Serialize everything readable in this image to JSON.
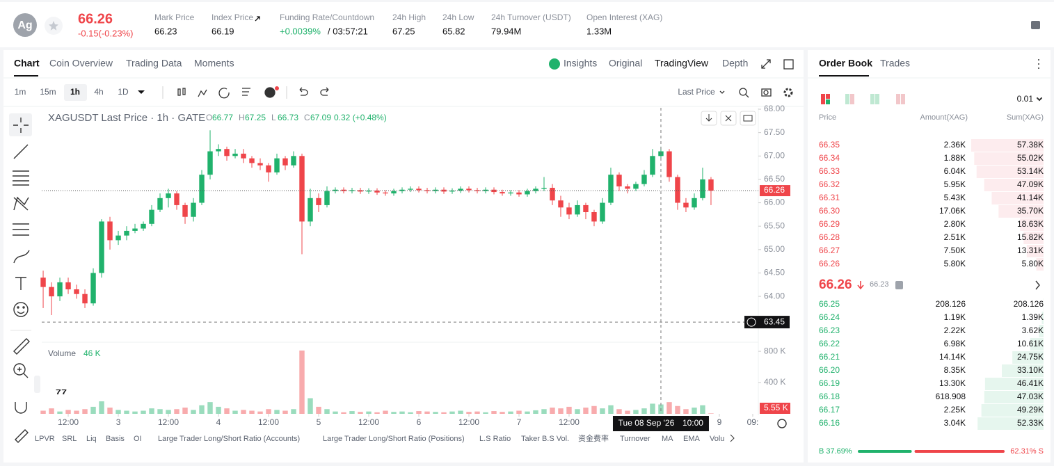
{
  "header": {
    "avatar": "Ag",
    "price": "66.26",
    "change": "-0.15(-0.23%)",
    "stats": [
      {
        "label": "Mark Price",
        "value": "66.23"
      },
      {
        "label": "Index Price",
        "value": "66.19"
      },
      {
        "label": "Funding Rate/Countdown",
        "value": "+0.0039%",
        "countdown": "/ 03:57:21"
      },
      {
        "label": "24h High",
        "value": "67.25"
      },
      {
        "label": "24h Low",
        "value": "65.82"
      },
      {
        "label": "24h Turnover (USDT)",
        "value": "79.94M"
      },
      {
        "label": "Open Interest (XAG)",
        "value": "1.33M"
      }
    ]
  },
  "tabs": [
    "Chart",
    "Coin Overview",
    "Trading Data",
    "Moments"
  ],
  "views": [
    "Insights",
    "Original",
    "TradingView",
    "Depth"
  ],
  "intervals": [
    "1m",
    "15m",
    "1h",
    "4h",
    "1D"
  ],
  "price_type": "Last Price",
  "indicators": [
    "LPVR",
    "SRL",
    "Liq",
    "Basis",
    "OI",
    "Large Trader Long/Short Ratio (Accounts)",
    "Large Trader Long/Short Ratio (Positions)",
    "L.S Ratio",
    "Taker B.S Vol.",
    "资金费率",
    "Turnover",
    "MA",
    "EMA",
    "Volu"
  ],
  "chart_data": {
    "type": "candlestick",
    "title": "XAGUSDT Last Price · 1h · GATE",
    "legend": [
      {
        "key": "O",
        "value": "66.77"
      },
      {
        "key": "H",
        "value": "67.25"
      },
      {
        "key": "L",
        "value": "66.73"
      },
      {
        "key": "C",
        "value": "67.09"
      }
    ],
    "legend_change": "0.32 (+0.48%)",
    "xlim": [
      -0.17,
      85.67
    ],
    "xticks": [
      {
        "value": 3,
        "label": "12:00"
      },
      {
        "value": 9,
        "label": "3"
      },
      {
        "value": 15,
        "label": "12:00"
      },
      {
        "value": 21,
        "label": "4"
      },
      {
        "value": 27,
        "label": "12:00"
      },
      {
        "value": 33,
        "label": "5"
      },
      {
        "value": 39,
        "label": "12:00"
      },
      {
        "value": 45,
        "label": "6"
      },
      {
        "value": 51,
        "label": "12:00"
      },
      {
        "value": 57,
        "label": "7"
      },
      {
        "value": 63,
        "label": "12:00"
      },
      {
        "value": 81,
        "label": "9"
      },
      {
        "value": 85,
        "label": "09:"
      }
    ],
    "ylim": [
      63.05,
      68.03
    ],
    "yticks": [
      {
        "value": 64,
        "label": "64.00"
      },
      {
        "value": 64.5,
        "label": "64.50"
      },
      {
        "value": 65,
        "label": "65.00"
      },
      {
        "value": 65.5,
        "label": "65.50"
      },
      {
        "value": 66,
        "label": "66.00"
      },
      {
        "value": 66.5,
        "label": "66.50"
      },
      {
        "value": 67,
        "label": "67.00"
      },
      {
        "value": 67.5,
        "label": "67.50"
      },
      {
        "value": 68,
        "label": "68.00"
      }
    ],
    "colors": {
      "up": "#20b26c",
      "down": "#ef454a"
    },
    "open": [
      64.4,
      64.2,
      64.0,
      64.3,
      64.15,
      64.05,
      63.85,
      64.5,
      65.6,
      65.2,
      65.3,
      65.4,
      65.45,
      65.55,
      65.85,
      66.1,
      66.2,
      65.95,
      65.7,
      66.0,
      66.6,
      67.1,
      67.15,
      67.0,
      67.05,
      66.95,
      66.85,
      66.8,
      66.65,
      66.95,
      66.8,
      67.0,
      65.6,
      66.1,
      65.95,
      66.25,
      66.28,
      66.25,
      66.27,
      66.24,
      66.26,
      66.22,
      66.2,
      66.25,
      66.28,
      66.3,
      66.27,
      66.25,
      66.28,
      66.24,
      66.26,
      66.3,
      66.27,
      66.25,
      66.28,
      66.23,
      66.2,
      66.22,
      66.18,
      66.25,
      66.3,
      66.32,
      66.05,
      65.9,
      65.75,
      65.95,
      65.8,
      65.6,
      66.0,
      66.6,
      66.35,
      66.3,
      66.4,
      66.6,
      67.0,
      67.1,
      66.55,
      66.0,
      65.9,
      66.1,
      66.5
    ],
    "high": [
      64.55,
      64.3,
      64.4,
      64.4,
      64.25,
      64.15,
      64.6,
      65.65,
      65.7,
      65.4,
      65.5,
      65.55,
      65.6,
      65.95,
      66.2,
      66.3,
      66.25,
      66.0,
      66.1,
      66.7,
      67.55,
      67.25,
      67.2,
      67.15,
      67.15,
      67.0,
      66.95,
      66.85,
      67.05,
      67.0,
      67.1,
      67.05,
      66.3,
      66.2,
      66.35,
      66.33,
      66.33,
      66.32,
      66.32,
      66.31,
      66.31,
      66.27,
      66.3,
      66.33,
      66.35,
      66.35,
      66.32,
      66.33,
      66.33,
      66.31,
      66.35,
      66.35,
      66.32,
      66.33,
      66.33,
      66.28,
      66.27,
      66.27,
      66.3,
      66.35,
      66.55,
      66.4,
      66.15,
      66.0,
      66.05,
      66.0,
      65.85,
      66.1,
      66.75,
      66.65,
      66.4,
      66.45,
      66.7,
      67.15,
      67.2,
      67.15,
      66.6,
      66.1,
      66.2,
      66.75,
      66.55
    ],
    "low": [
      63.75,
      63.6,
      63.9,
      64.05,
      63.95,
      63.75,
      63.8,
      64.4,
      65.0,
      65.1,
      65.2,
      65.35,
      65.4,
      65.5,
      65.8,
      65.9,
      65.85,
      65.55,
      65.6,
      65.95,
      66.5,
      67.0,
      66.9,
      66.95,
      66.85,
      66.75,
      66.7,
      66.45,
      66.6,
      66.7,
      66.75,
      64.9,
      65.5,
      65.8,
      65.9,
      66.2,
      66.2,
      66.2,
      66.19,
      66.19,
      66.17,
      66.15,
      66.15,
      66.2,
      66.23,
      66.22,
      66.2,
      66.2,
      66.19,
      66.19,
      66.21,
      66.22,
      66.2,
      66.2,
      66.18,
      66.15,
      66.15,
      66.13,
      66.13,
      66.2,
      66.25,
      65.95,
      65.7,
      65.65,
      65.7,
      65.65,
      65.5,
      65.55,
      65.95,
      66.25,
      66.2,
      66.25,
      66.35,
      66.55,
      66.95,
      66.45,
      65.85,
      65.8,
      65.85,
      66.05,
      65.95
    ],
    "close": [
      64.2,
      64.0,
      64.3,
      64.15,
      64.05,
      63.85,
      64.5,
      65.6,
      65.2,
      65.3,
      65.4,
      65.45,
      65.55,
      65.85,
      66.1,
      66.2,
      65.95,
      65.7,
      66.0,
      66.6,
      67.1,
      67.15,
      67.0,
      67.05,
      66.95,
      66.85,
      66.8,
      66.65,
      66.95,
      66.8,
      67.0,
      65.6,
      66.1,
      65.95,
      66.25,
      66.28,
      66.25,
      66.27,
      66.24,
      66.26,
      66.22,
      66.2,
      66.25,
      66.28,
      66.3,
      66.27,
      66.25,
      66.28,
      66.24,
      66.26,
      66.3,
      66.27,
      66.25,
      66.28,
      66.23,
      66.2,
      66.22,
      66.18,
      66.25,
      66.3,
      66.32,
      66.05,
      65.9,
      65.75,
      65.95,
      65.8,
      65.6,
      66.0,
      66.6,
      66.35,
      66.3,
      66.4,
      66.6,
      67.0,
      67.1,
      66.55,
      66.0,
      65.9,
      66.1,
      66.5,
      66.26
    ],
    "volume": [
      40000,
      70000,
      30000,
      50000,
      40000,
      60000,
      90000,
      160000,
      80000,
      50000,
      40000,
      30000,
      40000,
      70000,
      60000,
      50000,
      60000,
      80000,
      50000,
      110000,
      150000,
      90000,
      70000,
      40000,
      50000,
      40000,
      30000,
      60000,
      50000,
      40000,
      60000,
      810000,
      200000,
      90000,
      60000,
      30000,
      20000,
      35000,
      25000,
      30000,
      20000,
      40000,
      25000,
      30000,
      20000,
      35000,
      30000,
      25000,
      20000,
      30000,
      40000,
      25000,
      30000,
      20000,
      35000,
      25000,
      30000,
      40000,
      30000,
      45000,
      60000,
      80000,
      70000,
      90000,
      60000,
      80000,
      100000,
      70000,
      110000,
      60000,
      40000,
      50000,
      70000,
      130000,
      120000,
      150000,
      100000,
      60000,
      80000,
      110000,
      5550
    ],
    "last_price_label": "66.26",
    "last_volume_label": "5.55 K",
    "volume_title": "Volume",
    "volume_hover": "46 K",
    "vlim": [
      0,
      890000
    ],
    "vticks": [
      {
        "value": 400000,
        "label": "400 K"
      },
      {
        "value": 800000,
        "label": "800 K"
      }
    ],
    "crosshair": {
      "x": 74,
      "price": 63.45,
      "date": "Tue 08 Sep '26",
      "time": "10:00"
    }
  },
  "order_book": {
    "tabs": [
      "Order Book",
      "Trades"
    ],
    "step": "0.01",
    "columns": [
      "Price",
      "Amount(XAG)",
      "Sum(XAG)"
    ],
    "asks": {
      "price": [
        "66.35",
        "66.34",
        "66.33",
        "66.32",
        "66.31",
        "66.30",
        "66.29",
        "66.28",
        "66.27",
        "66.26"
      ],
      "amount": [
        "2.36K",
        "1.88K",
        "6.04K",
        "5.95K",
        "5.43K",
        "17.06K",
        "2.80K",
        "2.51K",
        "7.50K",
        "5.80K"
      ],
      "sum": [
        57380,
        55020,
        53140,
        47090,
        41140,
        35700,
        18630,
        15820,
        13310,
        5800
      ],
      "sum_labels": [
        "57.38K",
        "55.02K",
        "53.14K",
        "47.09K",
        "41.14K",
        "35.70K",
        "18.63K",
        "15.82K",
        "13.31K",
        "5.80K"
      ]
    },
    "mid_price": "66.26",
    "mark_price": "66.23",
    "bids": {
      "price": [
        "66.25",
        "66.24",
        "66.23",
        "66.22",
        "66.21",
        "66.20",
        "66.19",
        "66.18",
        "66.17",
        "66.16"
      ],
      "amount": [
        "208.126",
        "1.19K",
        "2.22K",
        "6.98K",
        "14.14K",
        "8.35K",
        "13.30K",
        "618.908",
        "2.25K",
        "3.04K"
      ],
      "sum": [
        208.126,
        1390,
        3620,
        10610,
        24750,
        33100,
        46410,
        47030,
        49290,
        52330
      ],
      "sum_labels": [
        "208.126",
        "1.39K",
        "3.62K",
        "10.61K",
        "24.75K",
        "33.10K",
        "46.41K",
        "47.03K",
        "49.29K",
        "52.33K"
      ]
    },
    "ratio": {
      "buy": {
        "value": 37.69,
        "label": "B 37.69%"
      },
      "sell": {
        "value": 62.31,
        "label": "62.31% S"
      }
    }
  }
}
